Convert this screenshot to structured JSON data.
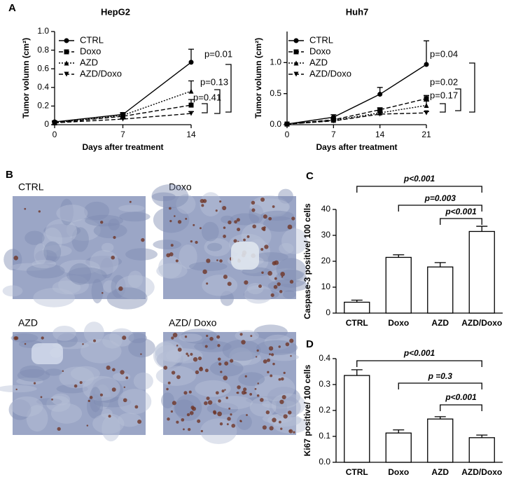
{
  "panel_labels": [
    "A",
    "B",
    "C",
    "D"
  ],
  "images": [
    {
      "label": "CTRL"
    },
    {
      "label": "Doxo"
    },
    {
      "label": "AZD"
    },
    {
      "label": "AZD/ Doxo"
    }
  ],
  "chart_data": [
    {
      "type": "line",
      "title": "HepG2",
      "x_label": "Days after treatment",
      "y_label": "Tumor volumn (cm²)",
      "x": [
        0,
        7,
        14
      ],
      "xlim": [
        0,
        14
      ],
      "xticks": [
        0,
        7,
        14
      ],
      "ylim": [
        0,
        1
      ],
      "yticks": [
        0,
        0.2,
        0.4,
        0.6,
        0.8,
        {
          "value": 1,
          "label": "1.0"
        }
      ],
      "series": [
        {
          "name": "CTRL",
          "color": "#000000",
          "line_style": "solid",
          "marker": "circle",
          "values": [
            0.03,
            0.11,
            0.67
          ],
          "errors": [
            0.01,
            0.02,
            0.14
          ]
        },
        {
          "name": "Doxo",
          "color": "#000000",
          "line_style": "dashed",
          "marker": "square",
          "values": [
            0.02,
            0.09,
            0.21
          ],
          "errors": [
            0.01,
            0.02,
            0.06
          ]
        },
        {
          "name": "AZD",
          "color": "#000000",
          "line_style": "dotted",
          "marker": "triangle-up",
          "values": [
            0.02,
            0.1,
            0.36
          ],
          "errors": [
            0.01,
            0.02,
            0.11
          ]
        },
        {
          "name": "AZD/Doxo",
          "color": "#000000",
          "line_style": "dashed",
          "marker": "triangle-down",
          "values": [
            0.02,
            0.06,
            0.12
          ],
          "errors": [
            0.01,
            0.01,
            0.02
          ]
        }
      ],
      "annotations": [
        "p=0.01",
        "p=0.13",
        "p=0.41"
      ]
    },
    {
      "type": "line",
      "title": "Huh7",
      "x_label": "Days after treatment",
      "y_label": "Tumor volumn (cm²)",
      "x": [
        0,
        7,
        14,
        21
      ],
      "xlim": [
        0,
        21
      ],
      "xticks": [
        0,
        7,
        14,
        21
      ],
      "ylim": [
        0,
        1.5
      ],
      "yticks": [
        {
          "value": 0,
          "label": "0.0"
        },
        0.5,
        {
          "value": 1,
          "label": "1.0"
        }
      ],
      "series": [
        {
          "name": "CTRL",
          "color": "#000000",
          "line_style": "solid",
          "marker": "circle",
          "values": [
            0.01,
            0.12,
            0.49,
            0.97
          ],
          "errors": [
            0.01,
            0.04,
            0.11,
            0.38
          ]
        },
        {
          "name": "Doxo",
          "color": "#000000",
          "line_style": "dashed",
          "marker": "square",
          "values": [
            0.01,
            0.08,
            0.24,
            0.42
          ],
          "errors": [
            0.01,
            0.02,
            0.03,
            0.05
          ]
        },
        {
          "name": "AZD",
          "color": "#000000",
          "line_style": "dotted",
          "marker": "triangle-up",
          "values": [
            0.01,
            0.07,
            0.19,
            0.31
          ],
          "errors": [
            0.01,
            0.02,
            0.03,
            0.07
          ]
        },
        {
          "name": "AZD/Doxo",
          "color": "#000000",
          "line_style": "dashed",
          "marker": "triangle-down",
          "values": [
            0.01,
            0.06,
            0.17,
            0.19
          ],
          "errors": [
            0.01,
            0.01,
            0.02,
            0.02
          ]
        }
      ],
      "annotations": [
        "p=0.04",
        "p=0.02",
        "p=0.17"
      ]
    },
    {
      "type": "bar",
      "y_label": "Caspase-3 positive/ 100 cells",
      "color": "#ffffff",
      "categories": [
        "CTRL",
        "Doxo",
        "AZD",
        "AZD/Doxo"
      ],
      "values": [
        4.2,
        21.5,
        17.8,
        31.5
      ],
      "errors": [
        0.8,
        1.0,
        1.7,
        2.0
      ],
      "ylim": [
        0,
        40
      ],
      "yticks": [
        0,
        10,
        20,
        30,
        40
      ],
      "annotations": [
        "p<0.001",
        "p=0.003",
        "p<0.001"
      ]
    },
    {
      "type": "bar",
      "y_label": "Ki67 positive/ 100 cells",
      "color": "#ffffff",
      "categories": [
        "CTRL",
        "Doxo",
        "AZD",
        "AZD/Doxo"
      ],
      "values": [
        0.335,
        0.113,
        0.167,
        0.095
      ],
      "errors": [
        0.022,
        0.012,
        0.009,
        0.01
      ],
      "ylim": [
        0,
        0.4
      ],
      "yticks": [
        {
          "value": 0,
          "label": "0.0"
        },
        0.1,
        0.2,
        0.3,
        0.4
      ],
      "annotations": [
        "p<0.001",
        "p =0.3",
        "p<0.001"
      ]
    }
  ]
}
